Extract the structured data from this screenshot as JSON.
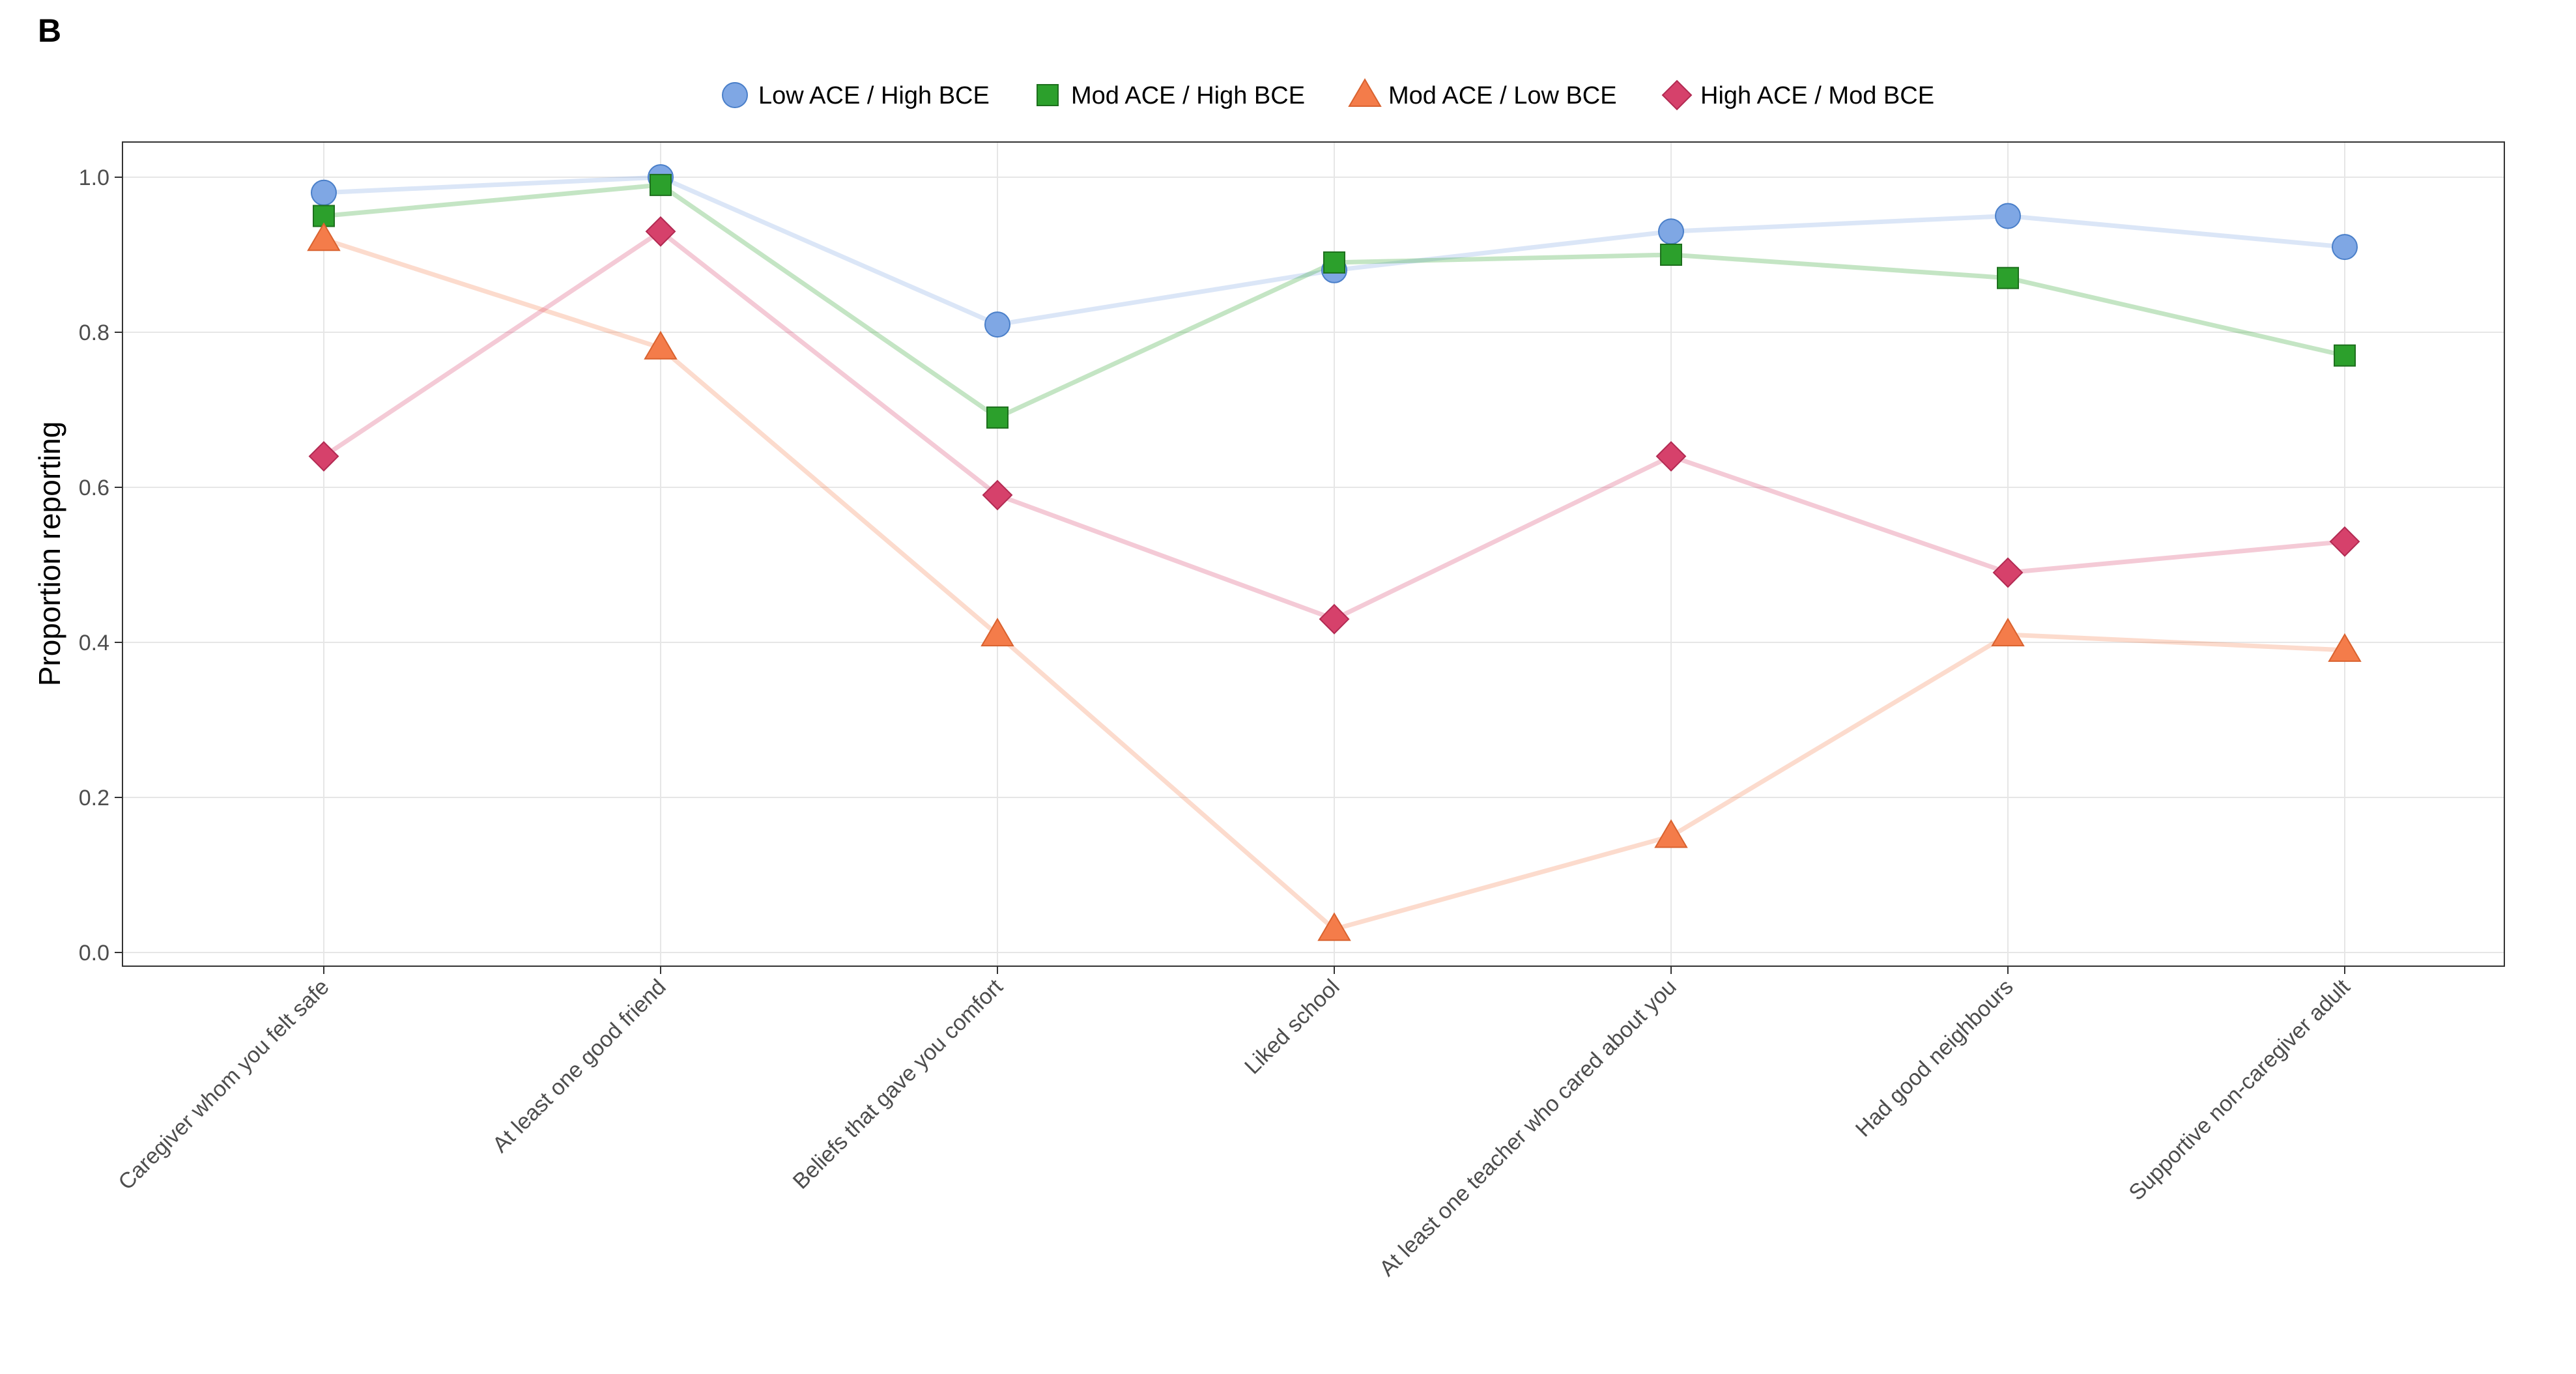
{
  "panel_label": "B",
  "colors": {
    "Low ACE / High BCE": "#7fa7e4",
    "Mod ACE / High BCE": "#2ca02c",
    "Mod ACE / Low BCE": "#f47c4a",
    "High ACE / Mod BCE": "#d6416b"
  },
  "chart_data": {
    "type": "line",
    "title": "",
    "xlabel": "",
    "ylabel": "Proportion reporting",
    "ylim": [
      0.0,
      1.0
    ],
    "yticks": [
      "0.0",
      "0.2",
      "0.4",
      "0.6",
      "0.8",
      "1.0"
    ],
    "grid": true,
    "legend_position": "top",
    "categories": [
      "Caregiver whom you felt safe",
      "At least one good friend",
      "Beliefs that gave you comfort",
      "Liked school",
      "At least one teacher who cared about you",
      "Had good neighbours",
      "Supportive non-caregiver adult"
    ],
    "series": [
      {
        "name": "Low ACE / High BCE",
        "marker": "circle",
        "values": [
          0.98,
          1.0,
          0.81,
          0.88,
          0.93,
          0.95,
          0.91
        ]
      },
      {
        "name": "Mod ACE / High BCE",
        "marker": "square",
        "values": [
          0.95,
          0.99,
          0.69,
          0.89,
          0.9,
          0.87,
          0.77
        ]
      },
      {
        "name": "Mod ACE / Low BCE",
        "marker": "triangle",
        "values": [
          0.92,
          0.78,
          0.41,
          0.03,
          0.15,
          0.41,
          0.39
        ]
      },
      {
        "name": "High ACE / Mod BCE",
        "marker": "diamond",
        "values": [
          0.64,
          0.93,
          0.59,
          0.43,
          0.64,
          0.49,
          0.53
        ]
      }
    ]
  }
}
